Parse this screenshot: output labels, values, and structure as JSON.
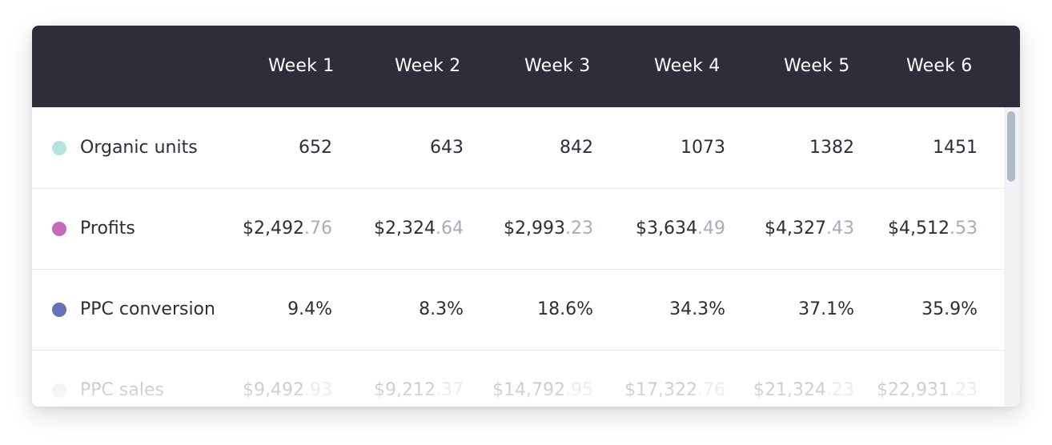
{
  "colors": {
    "header_bg": "#2e2e3a",
    "header_text": "#ffffff",
    "body_text": "#2e2e3a",
    "cents_text": "#a9acb8",
    "organic_units": "#b3e5de",
    "profits": "#c46cb8",
    "ppc_conversion": "#6571b9",
    "ppc_sales": "#cfcfd4"
  },
  "table": {
    "columns": [
      "Week 1",
      "Week 2",
      "Week 3",
      "Week 4",
      "Week 5",
      "Week 6"
    ],
    "rows": [
      {
        "label": "Organic units",
        "dot_color": "#b3e5de",
        "values": [
          {
            "main": "652",
            "cents": ""
          },
          {
            "main": "643",
            "cents": ""
          },
          {
            "main": "842",
            "cents": ""
          },
          {
            "main": "1073",
            "cents": ""
          },
          {
            "main": "1382",
            "cents": ""
          },
          {
            "main": "1451",
            "cents": ""
          }
        ]
      },
      {
        "label": "Profits",
        "dot_color": "#c46cb8",
        "values": [
          {
            "main": "$2,492",
            "cents": ".76"
          },
          {
            "main": "$2,324",
            "cents": ".64"
          },
          {
            "main": "$2,993",
            "cents": ".23"
          },
          {
            "main": "$3,634",
            "cents": ".49"
          },
          {
            "main": "$4,327",
            "cents": ".43"
          },
          {
            "main": "$4,512",
            "cents": ".53"
          }
        ]
      },
      {
        "label": "PPC conversion",
        "dot_color": "#6571b9",
        "values": [
          {
            "main": "9.4%",
            "cents": ""
          },
          {
            "main": "8.3%",
            "cents": ""
          },
          {
            "main": "18.6%",
            "cents": ""
          },
          {
            "main": "34.3%",
            "cents": ""
          },
          {
            "main": "37.1%",
            "cents": ""
          },
          {
            "main": "35.9%",
            "cents": ""
          }
        ]
      },
      {
        "label": "PPC sales",
        "dot_color": "#cfcfd4",
        "values": [
          {
            "main": "$9,492",
            "cents": ".93"
          },
          {
            "main": "$9,212",
            "cents": ".37"
          },
          {
            "main": "$14,792",
            "cents": ".95"
          },
          {
            "main": "$17,322",
            "cents": ".76"
          },
          {
            "main": "$21,324",
            "cents": ".23"
          },
          {
            "main": "$22,931",
            "cents": ".23"
          }
        ]
      }
    ]
  }
}
